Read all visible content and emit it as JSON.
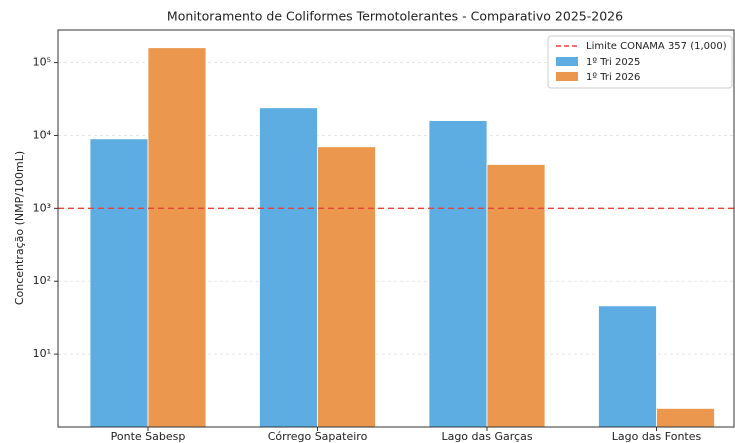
{
  "chart_data": {
    "type": "bar",
    "title": "Monitoramento de Coliformes Termotolerantes - Comparativo 2025-2026",
    "ylabel": "Concentração (NMP/100mL)",
    "categories": [
      "Ponte Sabesp",
      "Córrego Sapateiro",
      "Lago das Garças",
      "Lago das Fontes"
    ],
    "series": [
      {
        "name": "1º Tri 2025",
        "color": "#5dade2",
        "values": [
          9000,
          24000,
          16000,
          46
        ]
      },
      {
        "name": "1º Tri 2026",
        "color": "#eb984e",
        "values": [
          160000,
          7000,
          4000,
          1.8
        ]
      }
    ],
    "threshold": {
      "name": "Limite CONAMA 357 (1,000)",
      "value": 1000,
      "color": "#e8433a"
    },
    "ylim": [
      1,
      280000
    ],
    "yticks": [
      {
        "value": 10,
        "label": "10¹"
      },
      {
        "value": 100,
        "label": "10²"
      },
      {
        "value": 1000,
        "label": "10³"
      },
      {
        "value": 10000,
        "label": "10⁴"
      },
      {
        "value": 100000,
        "label": "10⁵"
      }
    ],
    "log_scale": true,
    "grid": true,
    "legend": "upper right"
  }
}
